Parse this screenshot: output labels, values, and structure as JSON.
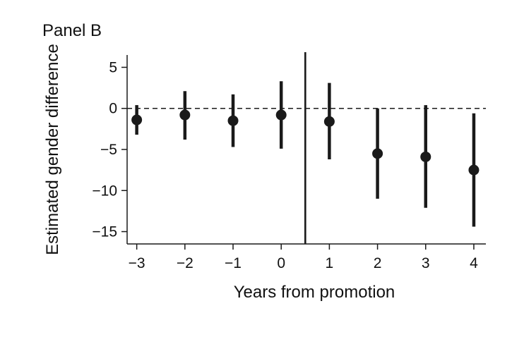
{
  "panel_title": "Panel B",
  "chart_data": {
    "type": "scatter",
    "subtype": "point-estimates-with-confidence-intervals",
    "xlabel": "Years from promotion",
    "ylabel": "Estimated gender difference",
    "x_ticks": [
      -3,
      -2,
      -1,
      0,
      1,
      2,
      3,
      4
    ],
    "x_tick_labels": [
      "−3",
      "−2",
      "−1",
      "0",
      "1",
      "2",
      "3",
      "4"
    ],
    "y_ticks": [
      5,
      0,
      -5,
      -10,
      -15
    ],
    "y_tick_labels": [
      "5",
      "0",
      "−5",
      "−10",
      "−15"
    ],
    "xlim": [
      -3.2,
      4.25
    ],
    "ylim": [
      -16.5,
      6.5
    ],
    "reference_hline": 0,
    "reference_vline": 0.5,
    "grid": false,
    "points": [
      {
        "x": -3,
        "estimate": -1.4,
        "ci_low": -3.2,
        "ci_high": 0.4
      },
      {
        "x": -2,
        "estimate": -0.8,
        "ci_low": -3.8,
        "ci_high": 2.1
      },
      {
        "x": -1,
        "estimate": -1.5,
        "ci_low": -4.7,
        "ci_high": 1.7
      },
      {
        "x": 0,
        "estimate": -0.8,
        "ci_low": -4.9,
        "ci_high": 3.3
      },
      {
        "x": 1,
        "estimate": -1.6,
        "ci_low": -6.2,
        "ci_high": 3.1
      },
      {
        "x": 2,
        "estimate": -5.5,
        "ci_low": -11.0,
        "ci_high": 0.0
      },
      {
        "x": 3,
        "estimate": -5.9,
        "ci_low": -12.1,
        "ci_high": 0.4
      },
      {
        "x": 4,
        "estimate": -7.5,
        "ci_low": -14.4,
        "ci_high": -0.6
      }
    ],
    "colors": {
      "marker": "#1a1a1a",
      "axis": "#1a1a1a"
    }
  }
}
